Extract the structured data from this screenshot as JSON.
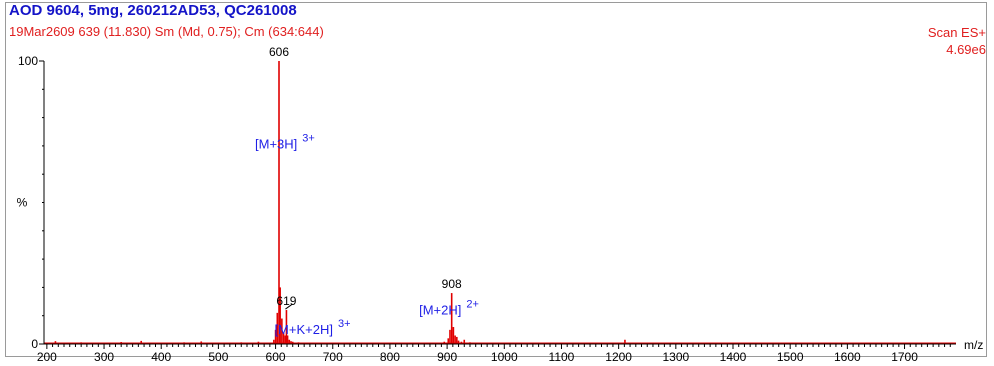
{
  "header": {
    "title": "AOD 9604, 5mg, 260212AD53, QC261008",
    "subtitle": "19Mar2609  639 (11.830) Sm (Md, 0.75); Cm (634:644)",
    "scan_mode": "Scan ES+",
    "max_intensity": "4.69e6"
  },
  "colors": {
    "title": "#1414c8",
    "subtitle": "#e02020",
    "trace": "#e00000",
    "annotation": "#1e1ee6"
  },
  "chart_data": {
    "type": "bar",
    "xlabel": "m/z",
    "ylabel": "%",
    "xlim": [
      195,
      1790
    ],
    "ylim": [
      0,
      100
    ],
    "x_ticks": [
      200,
      300,
      400,
      500,
      600,
      700,
      800,
      900,
      1000,
      1100,
      1200,
      1300,
      1400,
      1500,
      1600,
      1700
    ],
    "y_ticks": [
      0,
      100
    ],
    "grid": false,
    "series": [
      {
        "x": [
          215,
          232,
          260,
          300,
          330,
          365,
          400,
          440,
          470,
          503,
          540,
          570,
          597,
          600,
          603,
          606,
          608,
          611,
          614,
          617,
          619,
          621,
          624,
          627,
          630,
          640,
          660,
          700,
          750,
          800,
          850,
          895,
          902,
          905,
          908,
          911,
          914,
          917,
          920,
          925,
          930,
          940,
          960,
          1000,
          1050,
          1100,
          1150,
          1211,
          1250,
          1300,
          1350,
          1400,
          1450,
          1500,
          1550,
          1600,
          1650,
          1700,
          1750
        ],
        "y": [
          1.0,
          0.5,
          0.6,
          0.4,
          0.7,
          1.1,
          0.5,
          0.6,
          0.9,
          0.4,
          0.6,
          0.8,
          1.5,
          5,
          11,
          100,
          20,
          9,
          4,
          3,
          12,
          3,
          1.5,
          1,
          0.8,
          0.6,
          0.4,
          0.5,
          0.4,
          0.3,
          0.4,
          0.8,
          2,
          5,
          18,
          6,
          3,
          2.5,
          1.2,
          0.8,
          1.5,
          0.6,
          0.4,
          0.3,
          0.4,
          0.3,
          0.3,
          1.5,
          0.3,
          0.3,
          0.4,
          0.3,
          0.3,
          0.2,
          0.3,
          0.2,
          0.3,
          0.2,
          0.2
        ]
      }
    ],
    "peak_labels": [
      {
        "x": 606,
        "y": 100,
        "text": "606"
      },
      {
        "x": 619,
        "y": 12,
        "text": "619"
      },
      {
        "x": 908,
        "y": 18,
        "text": "908"
      }
    ],
    "annotations": [
      {
        "x": 606,
        "y": 69,
        "text": "[M+3H]",
        "charge": "3+"
      },
      {
        "x": 640,
        "y": 3.5,
        "text": "[M+K+2H]",
        "charge": "3+"
      },
      {
        "x": 893,
        "y": 10.5,
        "text": "[M+2H]",
        "charge": "2+"
      }
    ]
  }
}
